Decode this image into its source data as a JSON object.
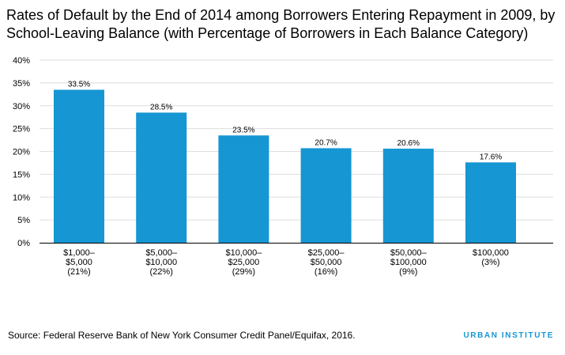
{
  "header": {
    "title": "Rates of Default by the End of 2014 among Borrowers Entering Repayment in 2009, by School-Leaving Balance (with Percentage of Borrowers in Each Balance Category)"
  },
  "footer": {
    "source": "Source: Federal Reserve Bank of New York Consumer Credit Panel/Equifax, 2016.",
    "brand": "URBAN INSTITUTE"
  },
  "colors": {
    "bar": "#1696d2",
    "grid": "#dedede",
    "axis": "#000000",
    "brand": "#1696d2"
  },
  "chart_data": {
    "type": "bar",
    "title": "Rates of Default by the End of 2014 among Borrowers Entering Repayment in 2009, by School-Leaving Balance (with Percentage of Borrowers in Each Balance Category)",
    "xlabel": "",
    "ylabel": "",
    "categories": [
      [
        "$1,000–",
        "$5,000",
        "(21%)"
      ],
      [
        "$5,000–",
        "$10,000",
        "(22%)"
      ],
      [
        "$10,000–",
        "$25,000",
        "(29%)"
      ],
      [
        "$25,000–",
        "$50,000",
        "(16%)"
      ],
      [
        "$50,000–",
        "$100,000",
        "(9%)"
      ],
      [
        "$100,000",
        "(3%)"
      ]
    ],
    "values": [
      33.5,
      28.5,
      23.5,
      20.7,
      20.6,
      17.6
    ],
    "data_labels": [
      "33.5%",
      "28.5%",
      "23.5%",
      "20.7%",
      "20.6%",
      "17.6%"
    ],
    "ylim": [
      0,
      40
    ],
    "yticks": [
      0,
      5,
      10,
      15,
      20,
      25,
      30,
      35,
      40
    ],
    "ytick_labels": [
      "0%",
      "5%",
      "10%",
      "15%",
      "20%",
      "25%",
      "30%",
      "35%",
      "40%"
    ],
    "grid": true,
    "legend": "none"
  }
}
